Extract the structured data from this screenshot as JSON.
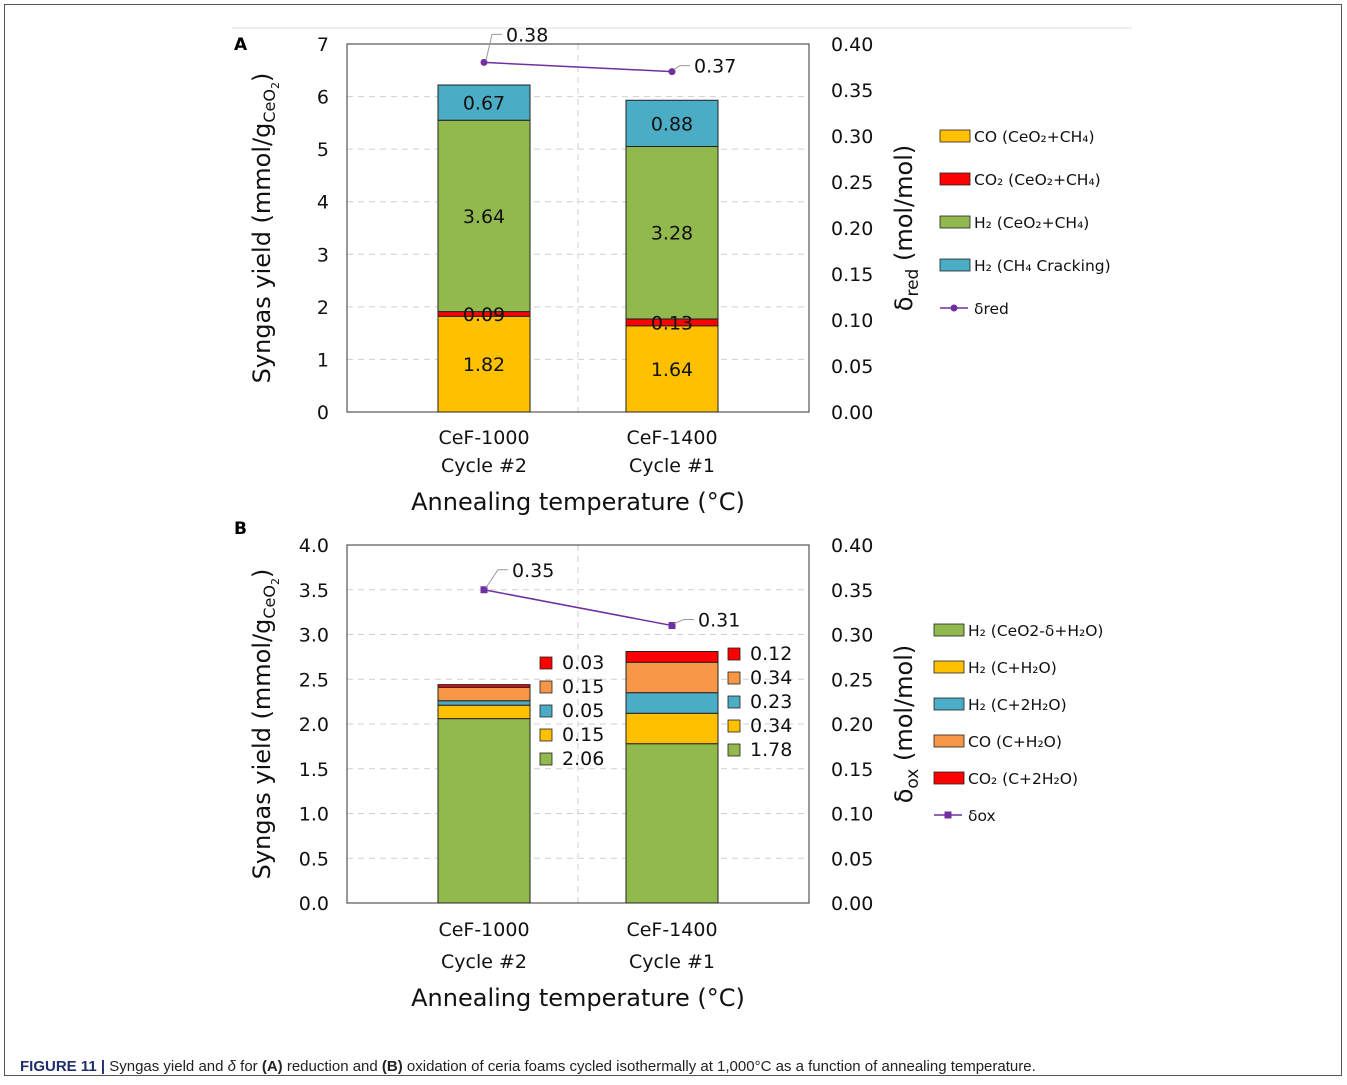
{
  "chart_data": [
    {
      "panel": "A",
      "type": "bar",
      "stacked": true,
      "categories": [
        [
          "CeF-1000",
          "Cycle #2"
        ],
        [
          "CeF-1400",
          "Cycle #1"
        ]
      ],
      "xlabel": "Annealing temperature (°C)",
      "ylabel": "Syngas yield (mmol/g",
      "ylabel_sub": "CeO",
      "ylabel_sub2": "2",
      "ylabel_close": ")",
      "y2label": "δ",
      "y2label_sub": "red",
      "y2label_rest": " (mol/mol)",
      "ylim": [
        0,
        7
      ],
      "yticks": [
        "0",
        "1",
        "2",
        "3",
        "4",
        "5",
        "6",
        "7"
      ],
      "y2lim": [
        0,
        0.4
      ],
      "y2ticks": [
        "0.00",
        "0.05",
        "0.10",
        "0.15",
        "0.20",
        "0.25",
        "0.30",
        "0.35",
        "0.40"
      ],
      "grid": true,
      "legend_position": "right",
      "series": [
        {
          "name": "CO (CeO₂+CH₄)",
          "color": "#FFC000",
          "values": [
            1.82,
            1.64
          ],
          "labels": [
            "1.82",
            "1.64"
          ]
        },
        {
          "name": "CO₂ (CeO₂+CH₄)",
          "color": "#FF0000",
          "values": [
            0.09,
            0.13
          ],
          "labels": [
            "0.09",
            "0.13"
          ]
        },
        {
          "name": "H₂ (CeO₂+CH₄)",
          "color": "#92B94E",
          "values": [
            3.64,
            3.28
          ],
          "labels": [
            "3.64",
            "3.28"
          ]
        },
        {
          "name": "H₂ (CH₄ Cracking)",
          "color": "#4BACC6",
          "values": [
            0.67,
            0.88
          ],
          "labels": [
            "0.67",
            "0.88"
          ]
        }
      ],
      "line": {
        "name": "δred",
        "color": "#7030A0",
        "marker": "circle",
        "values": [
          0.38,
          0.37
        ],
        "labels": [
          "0.38",
          "0.37"
        ]
      }
    },
    {
      "panel": "B",
      "type": "bar",
      "stacked": true,
      "categories": [
        [
          "CeF-1000",
          "Cycle #2"
        ],
        [
          "CeF-1400",
          "Cycle #1"
        ]
      ],
      "xlabel": "Annealing temperature (°C)",
      "ylabel": "Syngas yield (mmol/g",
      "ylabel_sub": "CeO",
      "ylabel_sub2": "2",
      "ylabel_close": ")",
      "y2label": "δ",
      "y2label_sub": "ox",
      "y2label_rest": " (mol/mol)",
      "ylim": [
        0,
        4
      ],
      "yticks": [
        "0.0",
        "0.5",
        "1.0",
        "1.5",
        "2.0",
        "2.5",
        "3.0",
        "3.5",
        "4.0"
      ],
      "y2lim": [
        0,
        0.4
      ],
      "y2ticks": [
        "0.00",
        "0.05",
        "0.10",
        "0.15",
        "0.20",
        "0.25",
        "0.30",
        "0.35",
        "0.40"
      ],
      "grid": true,
      "legend_position": "right",
      "series": [
        {
          "name": "H₂ (CeO2-δ+H₂O)",
          "color": "#92B94E",
          "values": [
            2.06,
            1.78
          ],
          "labels": [
            "2.06",
            "1.78"
          ]
        },
        {
          "name": "H₂ (C+H₂O)",
          "color": "#FFC000",
          "values": [
            0.15,
            0.34
          ],
          "labels": [
            "0.15",
            "0.34"
          ]
        },
        {
          "name": "H₂ (C+2H₂O)",
          "color": "#4BACC6",
          "values": [
            0.05,
            0.23
          ],
          "labels": [
            "0.05",
            "0.23"
          ]
        },
        {
          "name": "CO (C+H₂O)",
          "color": "#F79646",
          "values": [
            0.15,
            0.34
          ],
          "labels": [
            "0.15",
            "0.34"
          ]
        },
        {
          "name": "CO₂ (C+2H₂O)",
          "color": "#FF0000",
          "values": [
            0.03,
            0.12
          ],
          "labels": [
            "0.03",
            "0.12"
          ]
        }
      ],
      "line": {
        "name": "δox",
        "color": "#7030A0",
        "marker": "square",
        "values": [
          0.35,
          0.31
        ],
        "labels": [
          "0.35",
          "0.31"
        ]
      }
    }
  ],
  "caption": {
    "lead": "FIGURE 11 |",
    "part1": " Syngas yield and ",
    "delta": "δ",
    "part2": " for ",
    "ref_a": "(A)",
    "part3": " reduction and ",
    "ref_b": "(B)",
    "part4": " oxidation of ceria foams cycled isothermally at 1,000°C as a function of annealing temperature."
  }
}
